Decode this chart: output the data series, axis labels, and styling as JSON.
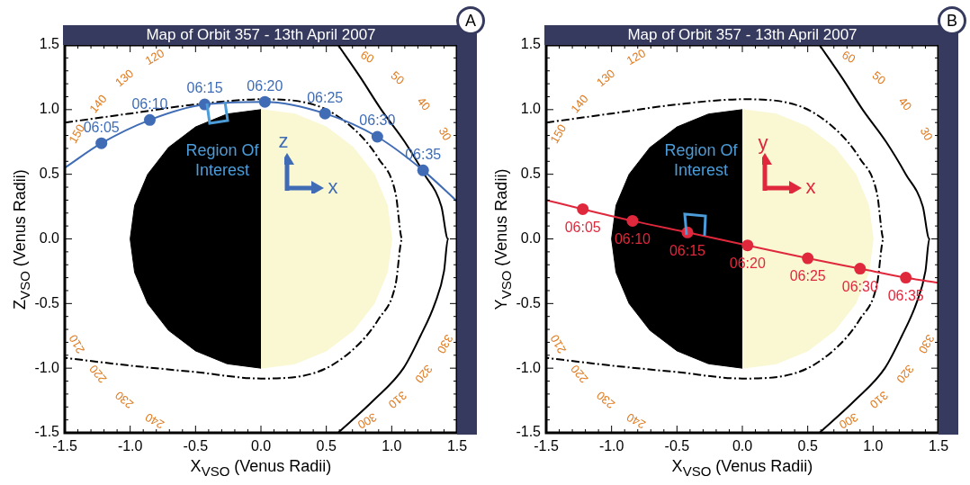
{
  "chart_data": [
    {
      "type": "line",
      "title": "Map of Orbit 357 - 13th April 2007",
      "xlabel": "X$_{VSO}$ (Venus Radii)",
      "ylabel": "Z$_{VSO}$ (Venus Radii)",
      "xlim": [
        -1.5,
        1.5
      ],
      "ylim": [
        -1.5,
        1.5
      ],
      "xticks": [
        -1.5,
        {
          "value": -1.4,
          "label": null
        },
        {
          "value": -1.3,
          "label": null
        },
        {
          "value": -1.2,
          "label": null
        },
        {
          "value": -1.1,
          "label": null
        },
        {
          "value": -1,
          "label": "-1.0"
        },
        {
          "value": -0.9,
          "label": null
        },
        {
          "value": -0.8,
          "label": null
        },
        {
          "value": -0.7,
          "label": null
        },
        {
          "value": -0.6,
          "label": null
        },
        -0.5,
        {
          "value": -0.4,
          "label": null
        },
        {
          "value": -0.3,
          "label": null
        },
        {
          "value": -0.2,
          "label": null
        },
        {
          "value": -0.1,
          "label": null
        },
        {
          "value": 0,
          "label": "0.0"
        },
        {
          "value": 0.1,
          "label": null
        },
        {
          "value": 0.2,
          "label": null
        },
        {
          "value": 0.3,
          "label": null
        },
        {
          "value": 0.4,
          "label": null
        },
        0.5,
        {
          "value": 0.6,
          "label": null
        },
        {
          "value": 0.7,
          "label": null
        },
        {
          "value": 0.8,
          "label": null
        },
        {
          "value": 0.9,
          "label": null
        },
        {
          "value": 1,
          "label": "1.0"
        },
        {
          "value": 1.1,
          "label": null
        },
        {
          "value": 1.2,
          "label": null
        },
        {
          "value": 1.3,
          "label": null
        },
        {
          "value": 1.4,
          "label": null
        },
        1.5
      ],
      "yticks": [
        -1.5,
        {
          "value": -1.4,
          "label": null
        },
        {
          "value": -1.3,
          "label": null
        },
        {
          "value": -1.2,
          "label": null
        },
        {
          "value": -1.1,
          "label": null
        },
        {
          "value": -1,
          "label": "-1.0"
        },
        {
          "value": -0.9,
          "label": null
        },
        {
          "value": -0.8,
          "label": null
        },
        {
          "value": -0.7,
          "label": null
        },
        {
          "value": -0.6,
          "label": null
        },
        -0.5,
        {
          "value": -0.4,
          "label": null
        },
        {
          "value": -0.3,
          "label": null
        },
        {
          "value": -0.2,
          "label": null
        },
        {
          "value": -0.1,
          "label": null
        },
        {
          "value": 0,
          "label": "0.0"
        },
        {
          "value": 0.1,
          "label": null
        },
        {
          "value": 0.2,
          "label": null
        },
        {
          "value": 0.3,
          "label": null
        },
        {
          "value": 0.4,
          "label": null
        },
        0.5,
        {
          "value": 0.6,
          "label": null
        },
        {
          "value": 0.7,
          "label": null
        },
        {
          "value": 0.8,
          "label": null
        },
        {
          "value": 0.9,
          "label": null
        },
        {
          "value": 1,
          "label": "1.0"
        },
        {
          "value": 1.1,
          "label": null
        },
        {
          "value": 1.2,
          "label": null
        },
        {
          "value": 1.3,
          "label": null
        },
        {
          "value": 1.4,
          "label": null
        },
        1.5
      ],
      "legend": false,
      "marker": "none",
      "series": [
        {
          "type": "area",
          "color": "#000000",
          "x": [
            0,
            -0.259,
            -0.5,
            -0.707,
            -0.866,
            -0.966,
            -1,
            -0.966,
            -0.866,
            -0.707,
            -0.5,
            -0.259,
            0
          ],
          "values": [
            1,
            0.966,
            0.866,
            0.707,
            0.5,
            0.259,
            0,
            -0.259,
            -0.5,
            -0.707,
            -0.866,
            -0.966,
            -1
          ]
        },
        {
          "type": "area",
          "color": "#faf8d2",
          "x": [
            0,
            0.259,
            0.5,
            0.707,
            0.866,
            0.966,
            1,
            0.966,
            0.866,
            0.707,
            0.5,
            0.259,
            0
          ],
          "values": [
            1,
            0.966,
            0.866,
            0.707,
            0.5,
            0.259,
            0,
            -0.259,
            -0.5,
            -0.707,
            -0.866,
            -0.966,
            -1
          ]
        },
        {
          "type": "line",
          "color": "#000000",
          "line_style": "dashed",
          "x": [
            -1.5,
            -1,
            -0.5,
            0,
            0.4,
            0.7,
            0.9,
            1.03,
            1.08,
            1.03,
            0.9,
            0.7,
            0.4,
            0,
            -0.5,
            -1,
            -1.5
          ],
          "values": [
            0.9,
            0.97,
            1.04,
            1.08,
            1.04,
            0.86,
            0.62,
            0.35,
            0,
            -0.35,
            -0.62,
            -0.86,
            -1.04,
            -1.08,
            -1.03,
            -0.98,
            -0.92
          ]
        },
        {
          "type": "line",
          "color": "#000000",
          "line_style": "solid",
          "x": [
            0.59,
            0.76,
            0.92,
            1.1,
            1.25,
            1.38,
            1.43,
            1.4,
            1.33,
            1.22,
            1.09,
            0.86,
            0.59
          ],
          "values": [
            1.5,
            1.25,
            1,
            0.75,
            0.5,
            0.25,
            0,
            -0.25,
            -0.5,
            -0.75,
            -1,
            -1.25,
            -1.5
          ]
        },
        {
          "type": "line",
          "color": "#3f6cb5",
          "line_style": "solid",
          "x": [
            -1.5,
            -1.22,
            -0.85,
            -0.43,
            0.03,
            0.49,
            0.89,
            1.24,
            1.5
          ],
          "values": [
            0.55,
            0.74,
            0.92,
            1.04,
            1.06,
            0.97,
            0.79,
            0.53,
            0.29
          ]
        },
        {
          "type": "scatter",
          "color": "#3f6cb5",
          "marker": "circle",
          "x": [
            -1.22,
            -0.85,
            -0.43,
            0.03,
            0.49,
            0.89,
            1.24
          ],
          "values": [
            0.74,
            0.92,
            1.04,
            1.06,
            0.97,
            0.79,
            0.53
          ]
        }
      ],
      "annotations": [
        "A",
        "Region Of Interest",
        "z",
        "x",
        "30",
        "40",
        "50",
        "60",
        "120",
        "130",
        "140",
        "150",
        "210",
        "220",
        "230",
        "240",
        "300",
        "310",
        "320",
        "330",
        {
          "text": "06:05",
          "x": -1.22,
          "y": 0.74
        },
        {
          "text": "06:10",
          "x": -0.85,
          "y": 0.92
        },
        {
          "text": "06:15",
          "x": -0.43,
          "y": 1.04
        },
        {
          "text": "06:20",
          "x": 0.03,
          "y": 1.06
        },
        {
          "text": "06:25",
          "x": 0.49,
          "y": 0.97
        },
        {
          "text": "06:30",
          "x": 0.89,
          "y": 0.79
        },
        {
          "text": "06:35",
          "x": 1.24,
          "y": 0.53
        }
      ]
    },
    {
      "type": "line",
      "title": "Map of Orbit 357 - 13th April 2007",
      "xlabel": "X$_{VSO}$ (Venus Radii)",
      "ylabel": "Y$_{VSO}$ (Venus Radii)",
      "xlim": [
        -1.5,
        1.5
      ],
      "ylim": [
        -1.5,
        1.5
      ],
      "xticks": [
        -1.5,
        {
          "value": -1.4,
          "label": null
        },
        {
          "value": -1.3,
          "label": null
        },
        {
          "value": -1.2,
          "label": null
        },
        {
          "value": -1.1,
          "label": null
        },
        {
          "value": -1,
          "label": "-1.0"
        },
        {
          "value": -0.9,
          "label": null
        },
        {
          "value": -0.8,
          "label": null
        },
        {
          "value": -0.7,
          "label": null
        },
        {
          "value": -0.6,
          "label": null
        },
        -0.5,
        {
          "value": -0.4,
          "label": null
        },
        {
          "value": -0.3,
          "label": null
        },
        {
          "value": -0.2,
          "label": null
        },
        {
          "value": -0.1,
          "label": null
        },
        {
          "value": 0,
          "label": "0.0"
        },
        {
          "value": 0.1,
          "label": null
        },
        {
          "value": 0.2,
          "label": null
        },
        {
          "value": 0.3,
          "label": null
        },
        {
          "value": 0.4,
          "label": null
        },
        0.5,
        {
          "value": 0.6,
          "label": null
        },
        {
          "value": 0.7,
          "label": null
        },
        {
          "value": 0.8,
          "label": null
        },
        {
          "value": 0.9,
          "label": null
        },
        {
          "value": 1,
          "label": "1.0"
        },
        {
          "value": 1.1,
          "label": null
        },
        {
          "value": 1.2,
          "label": null
        },
        {
          "value": 1.3,
          "label": null
        },
        {
          "value": 1.4,
          "label": null
        },
        1.5
      ],
      "yticks": [
        -1.5,
        {
          "value": -1.4,
          "label": null
        },
        {
          "value": -1.3,
          "label": null
        },
        {
          "value": -1.2,
          "label": null
        },
        {
          "value": -1.1,
          "label": null
        },
        {
          "value": -1,
          "label": "-1.0"
        },
        {
          "value": -0.9,
          "label": null
        },
        {
          "value": -0.8,
          "label": null
        },
        {
          "value": -0.7,
          "label": null
        },
        {
          "value": -0.6,
          "label": null
        },
        -0.5,
        {
          "value": -0.4,
          "label": null
        },
        {
          "value": -0.3,
          "label": null
        },
        {
          "value": -0.2,
          "label": null
        },
        {
          "value": -0.1,
          "label": null
        },
        {
          "value": 0,
          "label": "0.0"
        },
        {
          "value": 0.1,
          "label": null
        },
        {
          "value": 0.2,
          "label": null
        },
        {
          "value": 0.3,
          "label": null
        },
        {
          "value": 0.4,
          "label": null
        },
        0.5,
        {
          "value": 0.6,
          "label": null
        },
        {
          "value": 0.7,
          "label": null
        },
        {
          "value": 0.8,
          "label": null
        },
        {
          "value": 0.9,
          "label": null
        },
        {
          "value": 1,
          "label": "1.0"
        },
        {
          "value": 1.1,
          "label": null
        },
        {
          "value": 1.2,
          "label": null
        },
        {
          "value": 1.3,
          "label": null
        },
        {
          "value": 1.4,
          "label": null
        },
        1.5
      ],
      "legend": false,
      "marker": "none",
      "series": [
        {
          "type": "area",
          "color": "#000000",
          "x": [
            0,
            -0.259,
            -0.5,
            -0.707,
            -0.866,
            -0.966,
            -1,
            -0.966,
            -0.866,
            -0.707,
            -0.5,
            -0.259,
            0
          ],
          "values": [
            1,
            0.966,
            0.866,
            0.707,
            0.5,
            0.259,
            0,
            -0.259,
            -0.5,
            -0.707,
            -0.866,
            -0.966,
            -1
          ]
        },
        {
          "type": "area",
          "color": "#faf8d2",
          "x": [
            0,
            0.259,
            0.5,
            0.707,
            0.866,
            0.966,
            1,
            0.966,
            0.866,
            0.707,
            0.5,
            0.259,
            0
          ],
          "values": [
            1,
            0.966,
            0.866,
            0.707,
            0.5,
            0.259,
            0,
            -0.259,
            -0.5,
            -0.707,
            -0.866,
            -0.966,
            -1
          ]
        },
        {
          "type": "line",
          "color": "#000000",
          "line_style": "dashed",
          "x": [
            -1.5,
            -1,
            -0.5,
            0,
            0.4,
            0.7,
            0.9,
            1.03,
            1.08,
            1.03,
            0.9,
            0.7,
            0.4,
            0,
            -0.5,
            -1,
            -1.5
          ],
          "values": [
            0.9,
            0.97,
            1.04,
            1.08,
            1.04,
            0.86,
            0.62,
            0.35,
            0,
            -0.35,
            -0.62,
            -0.86,
            -1.04,
            -1.08,
            -1.03,
            -0.98,
            -0.92
          ]
        },
        {
          "type": "line",
          "color": "#000000",
          "line_style": "solid",
          "x": [
            0.59,
            0.76,
            0.92,
            1.1,
            1.25,
            1.38,
            1.43,
            1.4,
            1.33,
            1.22,
            1.09,
            0.86,
            0.59
          ],
          "values": [
            1.5,
            1.25,
            1,
            0.75,
            0.5,
            0.25,
            0,
            -0.25,
            -0.5,
            -0.75,
            -1,
            -1.25,
            -1.5
          ]
        },
        {
          "type": "line",
          "color": "#e0283c",
          "line_style": "solid",
          "x": [
            -1.5,
            -1.22,
            -0.84,
            -0.42,
            0.04,
            0.5,
            0.9,
            1.25,
            1.5
          ],
          "values": [
            0.3,
            0.23,
            0.14,
            0.05,
            -0.05,
            -0.15,
            -0.23,
            -0.3,
            -0.34
          ]
        },
        {
          "type": "scatter",
          "color": "#e0283c",
          "marker": "circle",
          "x": [
            -1.22,
            -0.84,
            -0.42,
            0.04,
            0.5,
            0.9,
            1.25
          ],
          "values": [
            0.23,
            0.14,
            0.05,
            -0.05,
            -0.15,
            -0.23,
            -0.3
          ]
        }
      ],
      "annotations": [
        "B",
        "Region Of Interest",
        "y",
        "x",
        "30",
        "40",
        "50",
        "60",
        "120",
        "130",
        "140",
        "150",
        "210",
        "220",
        "230",
        "240",
        "300",
        "310",
        "320",
        "330",
        {
          "text": "06:05",
          "x": -1.22,
          "y": 0.23
        },
        {
          "text": "06:10",
          "x": -0.84,
          "y": 0.14
        },
        {
          "text": "06:15",
          "x": -0.42,
          "y": 0.05
        },
        {
          "text": "06:20",
          "x": 0.04,
          "y": -0.05
        },
        {
          "text": "06:25",
          "x": 0.5,
          "y": -0.15
        },
        {
          "text": "06:30",
          "x": 0.9,
          "y": -0.23
        },
        {
          "text": "06:35",
          "x": 1.25,
          "y": -0.3
        }
      ]
    }
  ]
}
